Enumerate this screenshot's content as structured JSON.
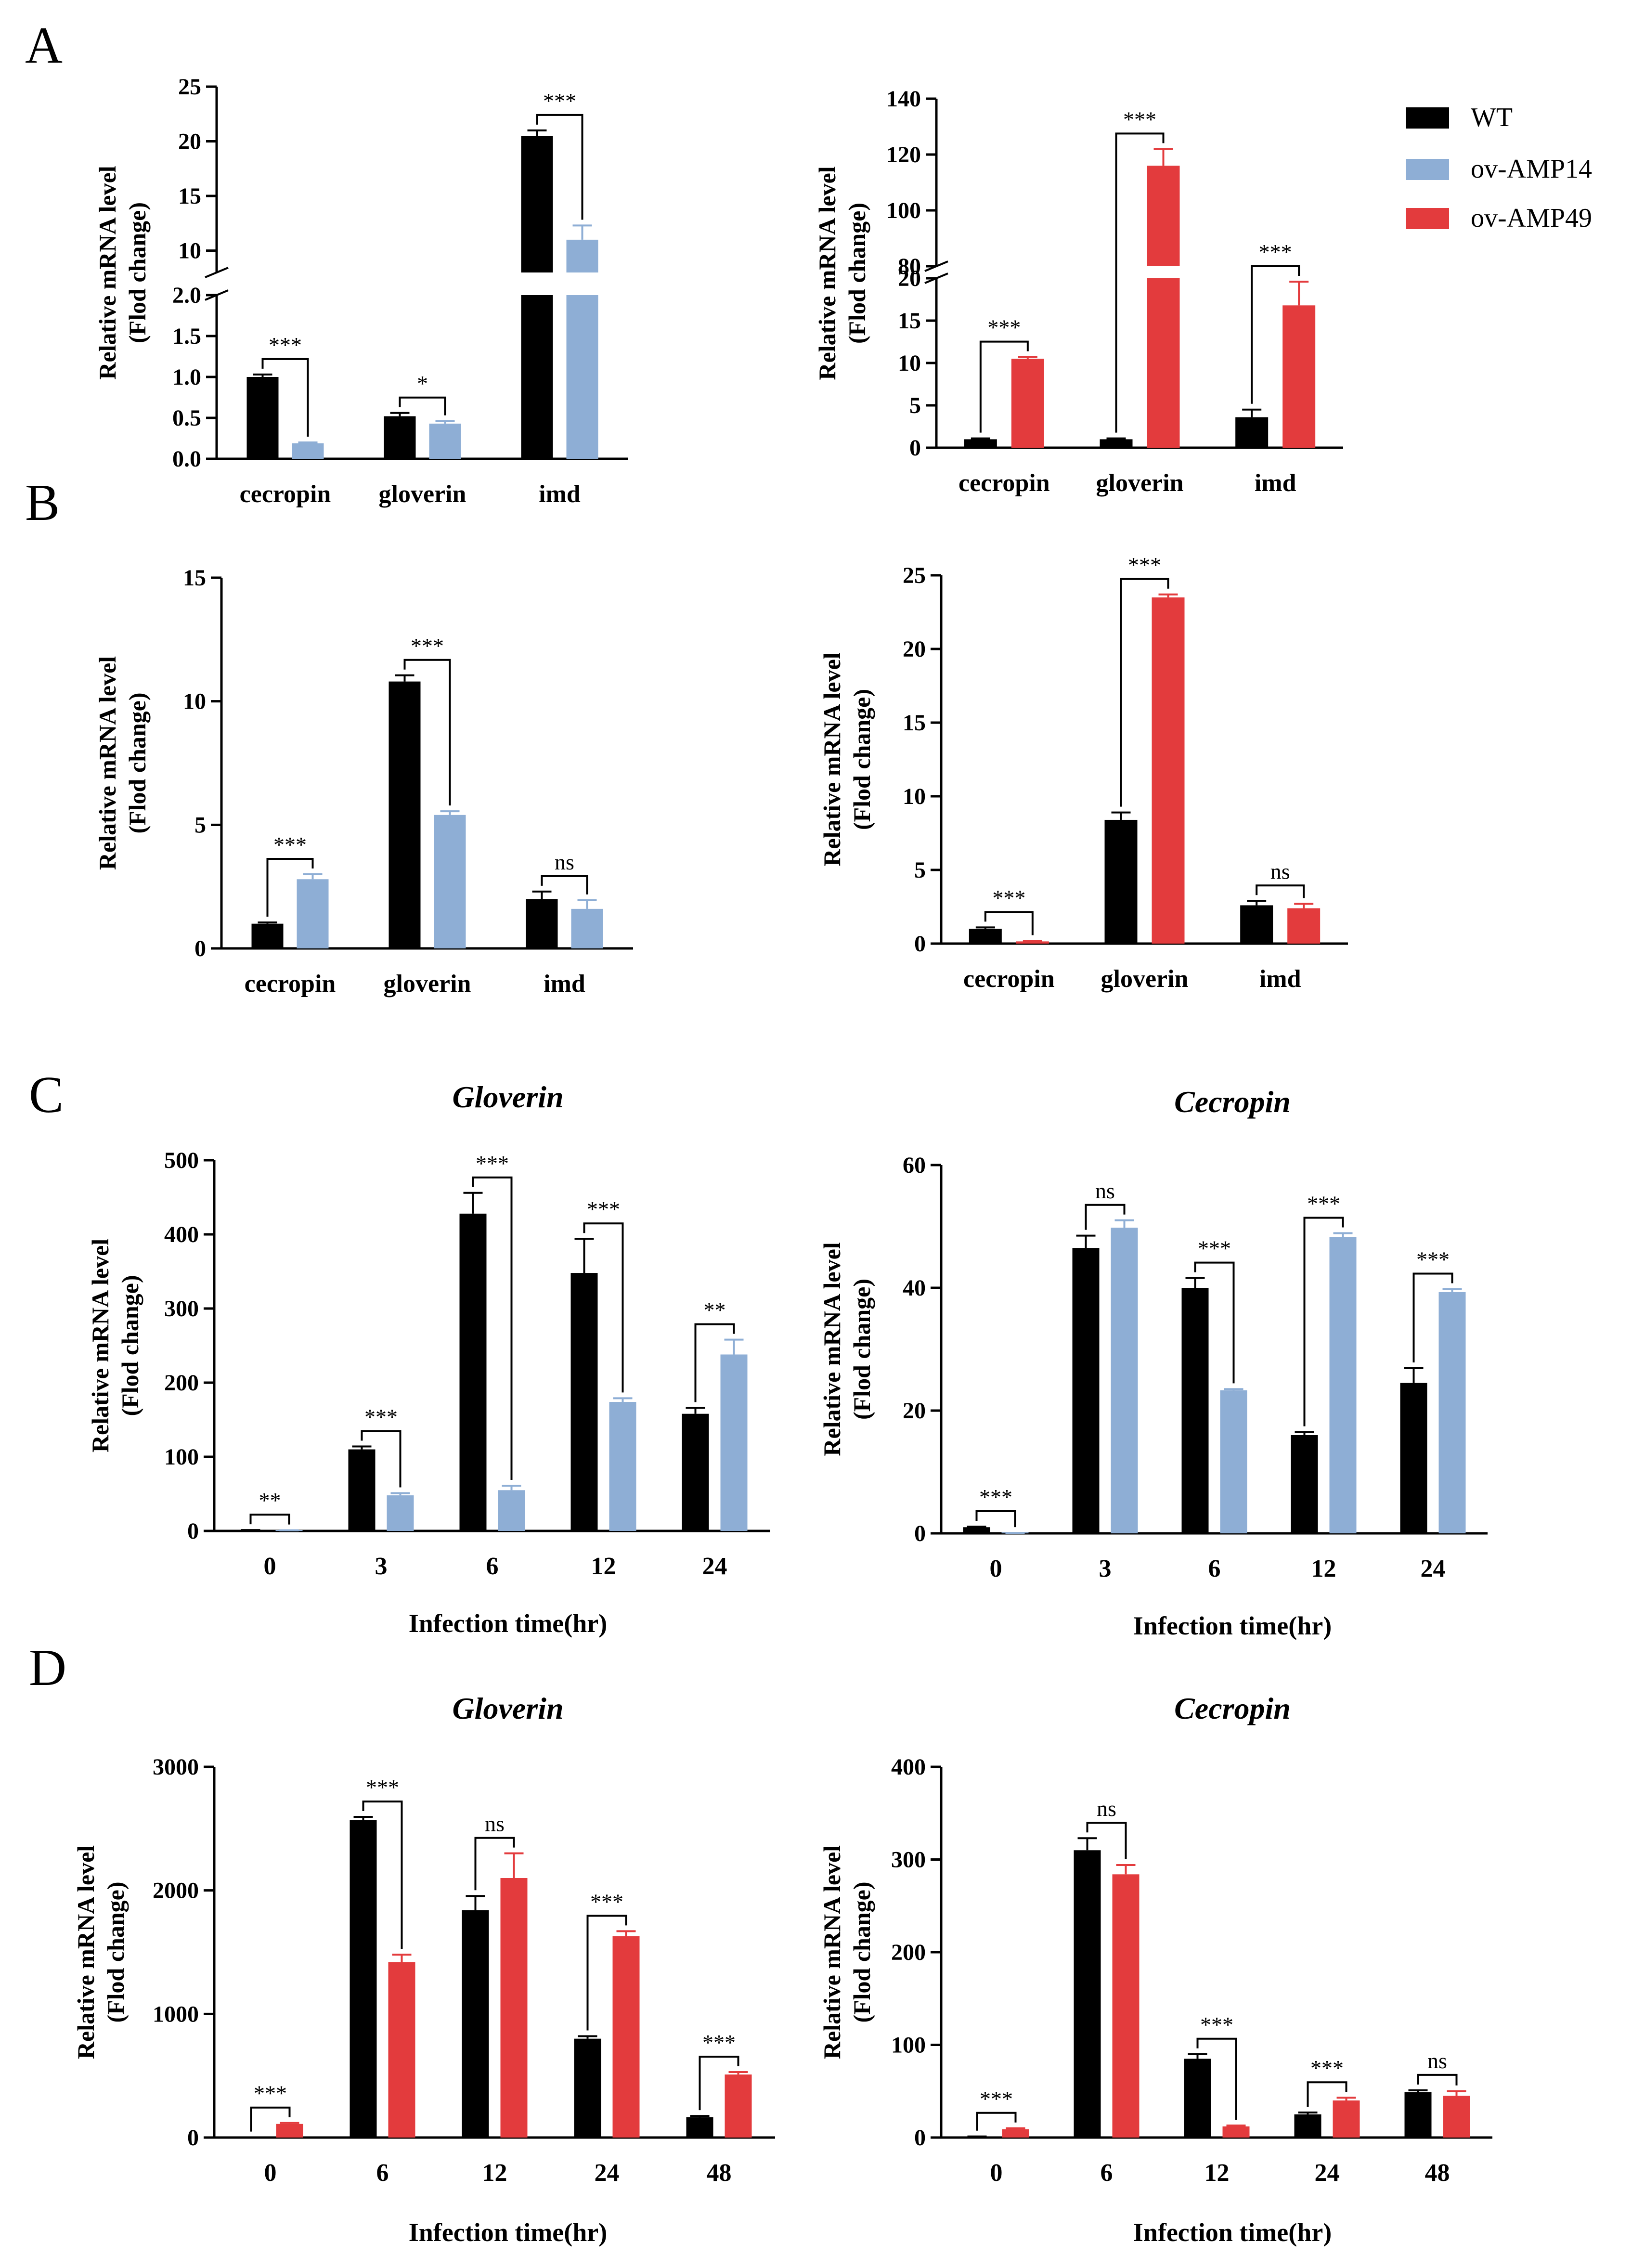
{
  "colors": {
    "WT": "#000000",
    "ov-AMP14": "#8eaed5",
    "ov-AMP49": "#e33b3d"
  },
  "legend": [
    {
      "name": "WT",
      "color": "#000000"
    },
    {
      "name": "ov-AMP14",
      "color": "#8eaed5"
    },
    {
      "name": "ov-AMP49",
      "color": "#e33b3d"
    }
  ],
  "panel_labels": [
    "A",
    "B",
    "C",
    "D"
  ],
  "chart_data": [
    {
      "id": "A-left",
      "type": "bar",
      "panel": "A",
      "ylabel": [
        "Relative mRNA level",
        "(Flod change)"
      ],
      "xlabel": "",
      "categories": [
        "cecropin",
        "gloverin",
        "imd"
      ],
      "ylim": [
        0,
        25
      ],
      "y_break": [
        2,
        8
      ],
      "yticks": [
        0,
        0.5,
        1,
        1.5,
        2,
        10,
        15,
        20,
        25
      ],
      "ytick_labels": [
        "0.0",
        "0.5",
        "1.0",
        "1.5",
        "2.0",
        "10",
        "15",
        "20",
        "25"
      ],
      "series": [
        {
          "name": "WT",
          "color": "#000000",
          "values": [
            1.0,
            0.52,
            20.5
          ],
          "errors": [
            0.03,
            0.04,
            0.5
          ]
        },
        {
          "name": "ov-AMP14",
          "color": "#8eaed5",
          "values": [
            0.19,
            0.43,
            11.0
          ],
          "errors": [
            0.01,
            0.03,
            1.3
          ]
        }
      ],
      "significance": [
        "***",
        "*",
        "***"
      ]
    },
    {
      "id": "A-right",
      "type": "bar",
      "panel": "A",
      "ylabel": [
        "Relative mRNA level",
        "(Flod change)"
      ],
      "xlabel": "",
      "categories": [
        "cecropin",
        "gloverin",
        "imd"
      ],
      "ylim": [
        0,
        140
      ],
      "y_break": [
        20,
        80
      ],
      "yticks": [
        0,
        5,
        10,
        15,
        20,
        80,
        100,
        120,
        140
      ],
      "ytick_labels": [
        "0",
        "5",
        "10",
        "15",
        "20",
        "80",
        "100",
        "120",
        "140"
      ],
      "series": [
        {
          "name": "WT",
          "color": "#000000",
          "values": [
            1.0,
            1.0,
            3.6
          ],
          "errors": [
            0.1,
            0.1,
            0.9
          ]
        },
        {
          "name": "ov-AMP49",
          "color": "#e33b3d",
          "values": [
            10.5,
            116,
            16.8
          ],
          "errors": [
            0.2,
            6,
            2.8
          ]
        }
      ],
      "significance": [
        "***",
        "***",
        "***"
      ]
    },
    {
      "id": "B-left",
      "type": "bar",
      "panel": "B",
      "ylabel": [
        "Relative mRNA level",
        "(Flod change)"
      ],
      "xlabel": "",
      "categories": [
        "cecropin",
        "gloverin",
        "imd"
      ],
      "ylim": [
        0,
        15
      ],
      "yticks": [
        0,
        5,
        10,
        15
      ],
      "ytick_labels": [
        "0",
        "5",
        "10",
        "15"
      ],
      "series": [
        {
          "name": "WT",
          "color": "#000000",
          "values": [
            1.0,
            10.8,
            2.0
          ],
          "errors": [
            0.05,
            0.25,
            0.3
          ]
        },
        {
          "name": "ov-AMP14",
          "color": "#8eaed5",
          "values": [
            2.8,
            5.4,
            1.6
          ],
          "errors": [
            0.2,
            0.15,
            0.35
          ]
        }
      ],
      "significance": [
        "***",
        "***",
        "ns"
      ]
    },
    {
      "id": "B-right",
      "type": "bar",
      "panel": "B",
      "ylabel": [
        "Relative mRNA level",
        "(Flod change)"
      ],
      "xlabel": "",
      "categories": [
        "cecropin",
        "gloverin",
        "imd"
      ],
      "ylim": [
        0,
        25
      ],
      "yticks": [
        0,
        5,
        10,
        15,
        20,
        25
      ],
      "ytick_labels": [
        "0",
        "5",
        "10",
        "15",
        "20",
        "25"
      ],
      "series": [
        {
          "name": "WT",
          "color": "#000000",
          "values": [
            1.0,
            8.4,
            2.6
          ],
          "errors": [
            0.1,
            0.5,
            0.3
          ]
        },
        {
          "name": "ov-AMP49",
          "color": "#e33b3d",
          "values": [
            0.15,
            23.5,
            2.4
          ],
          "errors": [
            0.03,
            0.2,
            0.3
          ]
        }
      ],
      "significance": [
        "***",
        "***",
        "ns"
      ]
    },
    {
      "id": "C-left",
      "type": "bar",
      "panel": "C",
      "title": "Gloverin",
      "ylabel": [
        "Relative mRNA level",
        "(Flod change)"
      ],
      "xlabel": "Infection time(hr)",
      "categories": [
        "0",
        "3",
        "6",
        "12",
        "24"
      ],
      "ylim": [
        0,
        500
      ],
      "yticks": [
        0,
        100,
        200,
        300,
        400,
        500
      ],
      "ytick_labels": [
        "0",
        "100",
        "200",
        "300",
        "400",
        "500"
      ],
      "series": [
        {
          "name": "WT",
          "color": "#000000",
          "values": [
            1,
            110,
            428,
            348,
            158
          ],
          "errors": [
            0.2,
            4,
            28,
            46,
            8
          ]
        },
        {
          "name": "ov-AMP14",
          "color": "#8eaed5",
          "values": [
            0.8,
            48,
            55,
            174,
            238
          ],
          "errors": [
            0.1,
            3,
            6,
            5,
            20
          ]
        }
      ],
      "significance": [
        "**",
        "***",
        "***",
        "***",
        "**"
      ]
    },
    {
      "id": "C-right",
      "type": "bar",
      "panel": "C",
      "title": "Cecropin",
      "ylabel": [
        "Relative mRNA level",
        "(Flod change)"
      ],
      "xlabel": "Infection time(hr)",
      "categories": [
        "0",
        "3",
        "6",
        "12",
        "24"
      ],
      "ylim": [
        0,
        60
      ],
      "yticks": [
        0,
        20,
        40,
        60
      ],
      "ytick_labels": [
        "0",
        "20",
        "40",
        "60"
      ],
      "series": [
        {
          "name": "WT",
          "color": "#000000",
          "values": [
            1,
            46.5,
            40,
            16,
            24.5
          ],
          "errors": [
            0.1,
            2,
            1.6,
            0.5,
            2.4
          ]
        },
        {
          "name": "ov-AMP14",
          "color": "#8eaed5",
          "values": [
            0.05,
            49.8,
            23.3,
            48.3,
            39.3
          ],
          "errors": [
            0.02,
            1.2,
            0.2,
            0.6,
            0.5
          ]
        }
      ],
      "significance": [
        "***",
        "ns",
        "***",
        "***",
        "***"
      ]
    },
    {
      "id": "D-left",
      "type": "bar",
      "panel": "D",
      "title": "Gloverin",
      "ylabel": [
        "Relative mRNA level",
        "(Flod change)"
      ],
      "xlabel": "Infection time(hr)",
      "categories": [
        "0",
        "6",
        "12",
        "24",
        "48"
      ],
      "ylim": [
        0,
        3000
      ],
      "yticks": [
        0,
        1000,
        2000,
        3000
      ],
      "ytick_labels": [
        "0",
        "1000",
        "2000",
        "3000"
      ],
      "series": [
        {
          "name": "WT",
          "color": "#000000",
          "values": [
            1,
            2570,
            1840,
            800,
            165
          ],
          "errors": [
            0.5,
            25,
            115,
            20,
            10
          ]
        },
        {
          "name": "ov-AMP49",
          "color": "#e33b3d",
          "values": [
            110,
            1420,
            2100,
            1630,
            510
          ],
          "errors": [
            8,
            60,
            200,
            40,
            20
          ]
        }
      ],
      "significance": [
        "***",
        "***",
        "ns",
        "***",
        "***"
      ]
    },
    {
      "id": "D-right",
      "type": "bar",
      "panel": "D",
      "title": "Cecropin",
      "ylabel": [
        "Relative mRNA level",
        "(Flod change)"
      ],
      "xlabel": "Infection time(hr)",
      "categories": [
        "0",
        "6",
        "12",
        "24",
        "48"
      ],
      "ylim": [
        0,
        400
      ],
      "yticks": [
        0,
        100,
        200,
        300,
        400
      ],
      "ytick_labels": [
        "0",
        "100",
        "200",
        "300",
        "400"
      ],
      "series": [
        {
          "name": "WT",
          "color": "#000000",
          "values": [
            1,
            310,
            85,
            25,
            49
          ],
          "errors": [
            0.2,
            13,
            5,
            2,
            2
          ]
        },
        {
          "name": "ov-AMP49",
          "color": "#e33b3d",
          "values": [
            9,
            284,
            12,
            40,
            45
          ],
          "errors": [
            1,
            10,
            1,
            3,
            5
          ]
        }
      ],
      "significance": [
        "***",
        "ns",
        "***",
        "***",
        "ns"
      ]
    }
  ]
}
